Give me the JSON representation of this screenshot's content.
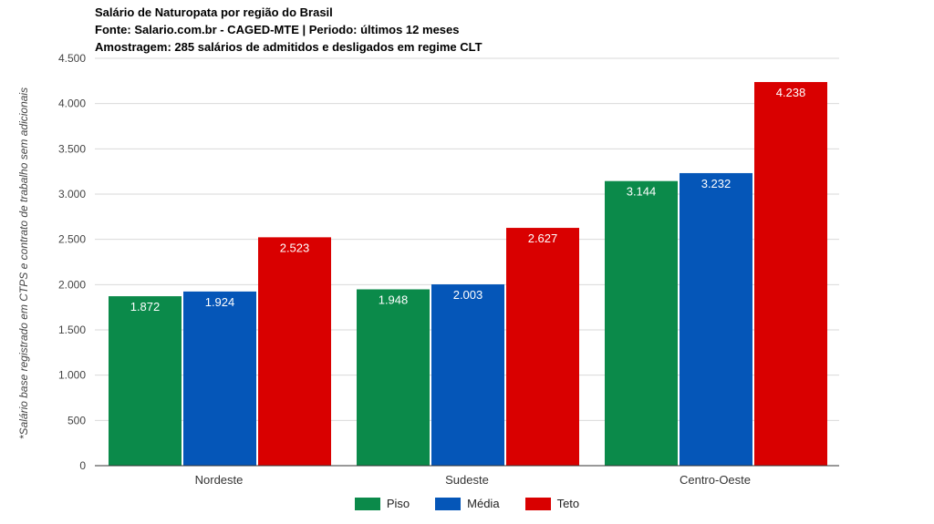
{
  "chart_data": {
    "type": "bar",
    "title": "Salário de Naturopata por região do Brasil",
    "subtitle_lines": [
      "Fonte: Salario.com.br - CAGED-MTE | Periodo: últimos 12 meses",
      "Amostragem: 285 salários de admitidos e desligados em regime CLT"
    ],
    "ylabel": "*Salário base registrado em CTPS e contrato de trabalho sem adicionais",
    "xlabel": "",
    "categories": [
      "Nordeste",
      "Sudeste",
      "Centro-Oeste"
    ],
    "series": [
      {
        "name": "Piso",
        "color": "#0b8a4a",
        "values": [
          1872,
          1948,
          3144
        ],
        "labels": [
          "1.872",
          "1.948",
          "3.144"
        ]
      },
      {
        "name": "Média",
        "color": "#0556b8",
        "values": [
          1924,
          2003,
          3232
        ],
        "labels": [
          "1.924",
          "2.003",
          "3.232"
        ]
      },
      {
        "name": "Teto",
        "color": "#d90000",
        "values": [
          2523,
          2627,
          4238
        ],
        "labels": [
          "2.523",
          "2.627",
          "4.238"
        ]
      }
    ],
    "ylim": [
      0,
      4500
    ],
    "yticks": [
      0,
      500,
      1000,
      1500,
      2000,
      2500,
      3000,
      3500,
      4000,
      4500
    ],
    "ytick_labels": [
      "0",
      "500",
      "1.000",
      "1.500",
      "2.000",
      "2.500",
      "3.000",
      "3.500",
      "4.000",
      "4.500"
    ],
    "grid": true,
    "legend_position": "bottom"
  }
}
